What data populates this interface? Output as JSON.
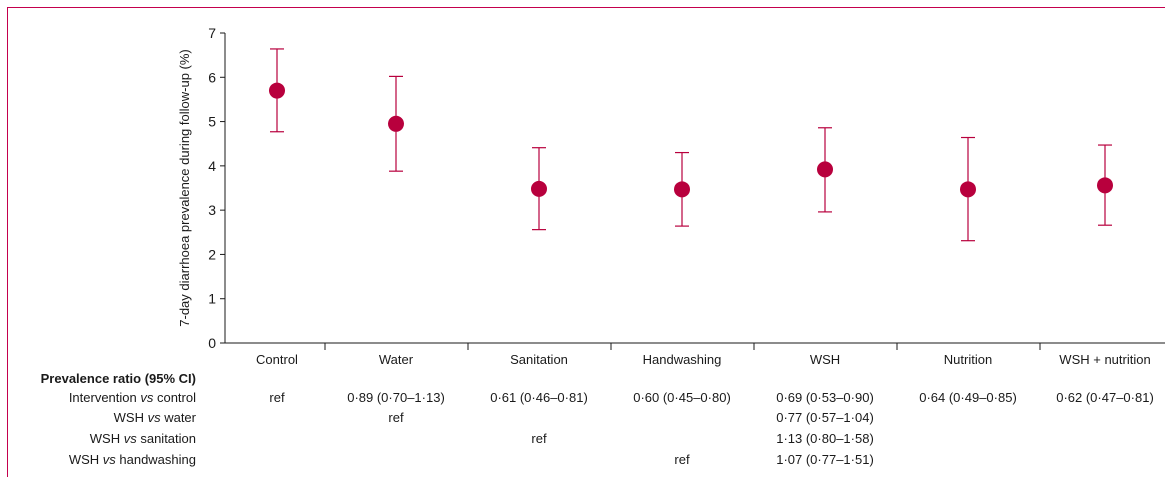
{
  "chart_data": {
    "type": "scatter",
    "ylabel": "7-day diarrhoea prevalence during follow-up (%)",
    "ylim": [
      0,
      7
    ],
    "yticks": [
      0,
      1,
      2,
      3,
      4,
      5,
      6,
      7
    ],
    "categories": [
      "Control",
      "Water",
      "Sanitation",
      "Handwashing",
      "WSH",
      "Nutrition",
      "WSH + nutrition"
    ],
    "values": [
      5.7,
      4.95,
      3.48,
      3.47,
      3.92,
      3.47,
      3.56
    ],
    "ci_lower": [
      4.77,
      3.88,
      2.56,
      2.64,
      2.96,
      2.31,
      2.66
    ],
    "ci_upper": [
      6.64,
      6.02,
      4.41,
      4.3,
      4.86,
      4.64,
      4.47
    ],
    "grid": false,
    "marker_color": "#b8003d",
    "frame_color": "#c4004d"
  },
  "table": {
    "header": "Prevalence ratio (95% CI)",
    "rows": [
      {
        "label_pre": "Intervention ",
        "label_vs": "vs",
        "label_post": " control",
        "cells": [
          "ref",
          "0·89 (0·70–1·13)",
          "0·61 (0·46–0·81)",
          "0·60 (0·45–0·80)",
          "0·69 (0·53–0·90)",
          "0·64 (0·49–0·85)",
          "0·62 (0·47–0·81)"
        ]
      },
      {
        "label_pre": "WSH ",
        "label_vs": "vs",
        "label_post": " water",
        "cells": [
          "",
          "ref",
          "",
          "",
          "0·77 (0·57–1·04)",
          "",
          ""
        ]
      },
      {
        "label_pre": "WSH ",
        "label_vs": "vs",
        "label_post": " sanitation",
        "cells": [
          "",
          "",
          "ref",
          "",
          "1·13 (0·80–1·58)",
          "",
          ""
        ]
      },
      {
        "label_pre": "WSH ",
        "label_vs": "vs",
        "label_post": " handwashing",
        "cells": [
          "",
          "",
          "",
          "ref",
          "1·07 (0·77–1·51)",
          "",
          ""
        ]
      }
    ]
  }
}
